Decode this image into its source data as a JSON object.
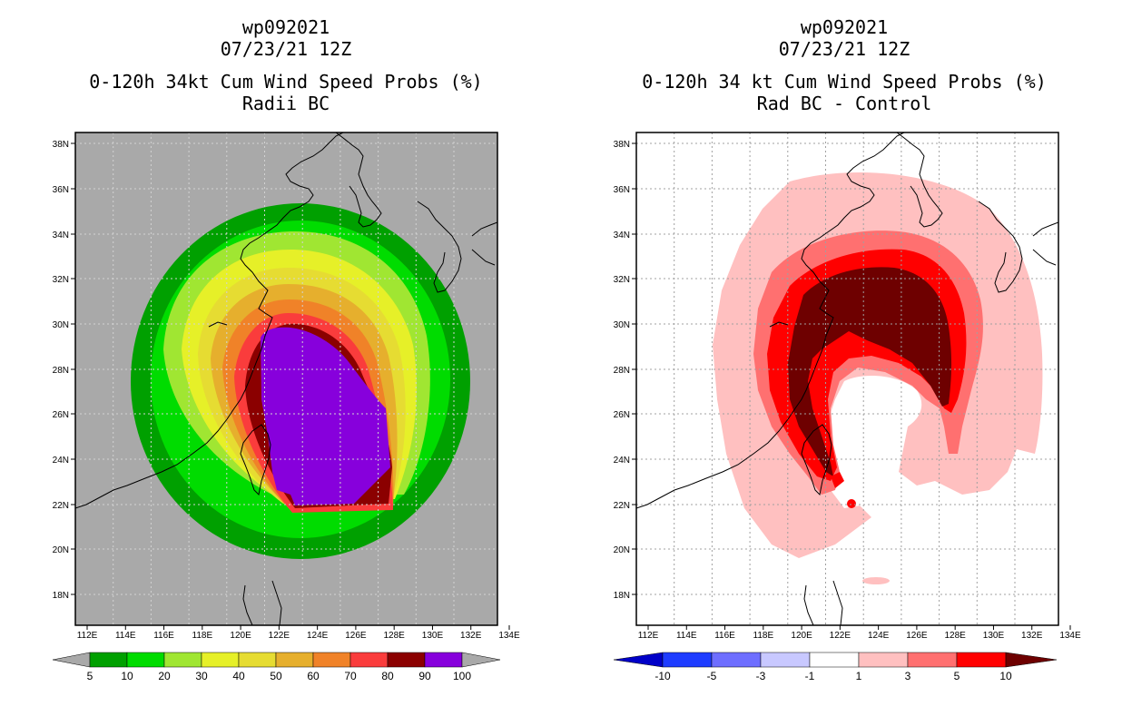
{
  "left_panel": {
    "title_lines": [
      "wp092021",
      "07/23/21 12Z",
      "0-120h 34kt Cum Wind Speed Probs (%)",
      "Radii BC"
    ],
    "background_color": "#a9a9a9",
    "colorbar": {
      "labels": [
        "5",
        "10",
        "20",
        "30",
        "40",
        "50",
        "60",
        "70",
        "80",
        "90",
        "100"
      ],
      "colors": [
        "#00a000",
        "#00dc00",
        "#a0e632",
        "#e6f028",
        "#e6dc32",
        "#e6af2d",
        "#f08228",
        "#fa3c3c",
        "#8b0000",
        "#8700dc"
      ]
    }
  },
  "right_panel": {
    "title_lines": [
      "wp092021",
      "07/23/21 12Z",
      "0-120h 34 kt Cum Wind Speed Probs (%)",
      "Rad BC - Control"
    ],
    "background_color": "#ffffff",
    "colorbar": {
      "labels": [
        "-10",
        "-5",
        "-3",
        "-1",
        "1",
        "3",
        "5",
        "10"
      ],
      "colors": [
        "#0000c8",
        "#1e3cff",
        "#6e6eff",
        "#c8c8ff",
        "#ffffff",
        "#ffc0c0",
        "#ff7070",
        "#ff0000",
        "#6e0000"
      ]
    }
  },
  "axes": {
    "lon_labels": [
      "112E",
      "114E",
      "116E",
      "118E",
      "120E",
      "122E",
      "124E",
      "126E",
      "128E",
      "130E",
      "132E",
      "134E"
    ],
    "lat_labels": [
      "18N",
      "20N",
      "22N",
      "24N",
      "26N",
      "28N",
      "30N",
      "32N",
      "34N",
      "36N",
      "38N"
    ]
  }
}
